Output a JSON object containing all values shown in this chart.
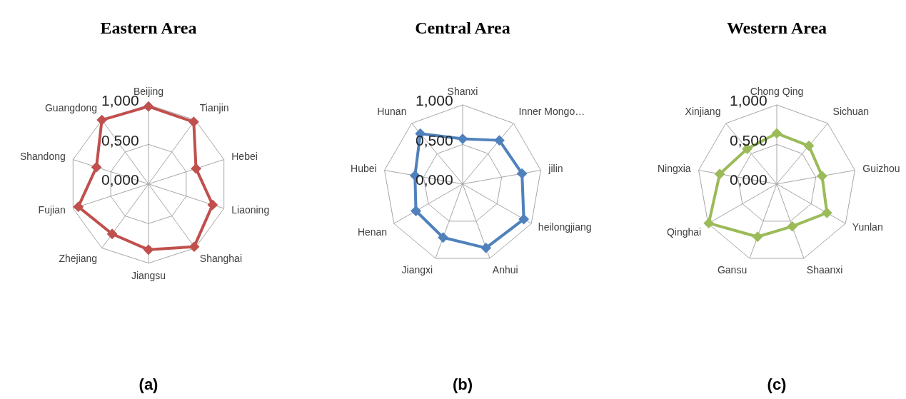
{
  "chart_data": [
    {
      "type": "radar",
      "title": "Eastern Area",
      "categories": [
        "Beijing",
        "Tianjin",
        "Hebei",
        "Liaoning",
        "Shanghai",
        "Jiangsu",
        "Zhejiang",
        "Fujian",
        "Shandong",
        "Guangdong"
      ],
      "series": [
        {
          "color": "#c0504d",
          "values": [
            0.98,
            0.97,
            0.63,
            0.85,
            0.98,
            0.83,
            0.78,
            0.93,
            0.69,
            1.0
          ]
        }
      ],
      "ylim": [
        0,
        1
      ],
      "yticks": [
        {
          "value": 0,
          "label": "0,000"
        },
        {
          "value": 0.5,
          "label": "0,500"
        },
        {
          "value": 1,
          "label": "1,000"
        }
      ],
      "grid": true,
      "marker": "diamond",
      "line_style": "solid",
      "annotations": [
        "(a)"
      ]
    },
    {
      "type": "radar",
      "title": "Central  Area",
      "categories": [
        "Shanxi",
        "Inner Mongo…",
        "jilin",
        "heilongjiang",
        "Anhui",
        "Jiangxi",
        "Henan",
        "Hubei",
        "Hunan"
      ],
      "series": [
        {
          "color": "#4f81bd",
          "values": [
            0.57,
            0.72,
            0.76,
            0.89,
            0.86,
            0.72,
            0.68,
            0.61,
            0.83
          ]
        }
      ],
      "ylim": [
        0,
        1
      ],
      "yticks": [
        {
          "value": 0,
          "label": "0,000"
        },
        {
          "value": 0.5,
          "label": "0,500"
        },
        {
          "value": 1,
          "label": "1,000"
        }
      ],
      "grid": true,
      "marker": "diamond",
      "line_style": "solid",
      "annotations": [
        "(b)"
      ]
    },
    {
      "type": "radar",
      "title": "Western Area",
      "categories": [
        "Chong Qing",
        "Sichuan",
        "Guizhou",
        "Yunlan",
        "Shaanxi",
        "Gansu",
        "Qinghai",
        "Ningxia",
        "Xinjiang"
      ],
      "series": [
        {
          "color": "#9bbb59",
          "values": [
            0.64,
            0.63,
            0.58,
            0.73,
            0.57,
            0.71,
            0.99,
            0.73,
            0.58
          ]
        }
      ],
      "ylim": [
        0,
        1
      ],
      "yticks": [
        {
          "value": 0,
          "label": "0,000"
        },
        {
          "value": 0.5,
          "label": "0,500"
        },
        {
          "value": 1,
          "label": "1,000"
        }
      ],
      "grid": true,
      "marker": "diamond",
      "line_style": "solid",
      "annotations": [
        "(c)"
      ]
    }
  ]
}
